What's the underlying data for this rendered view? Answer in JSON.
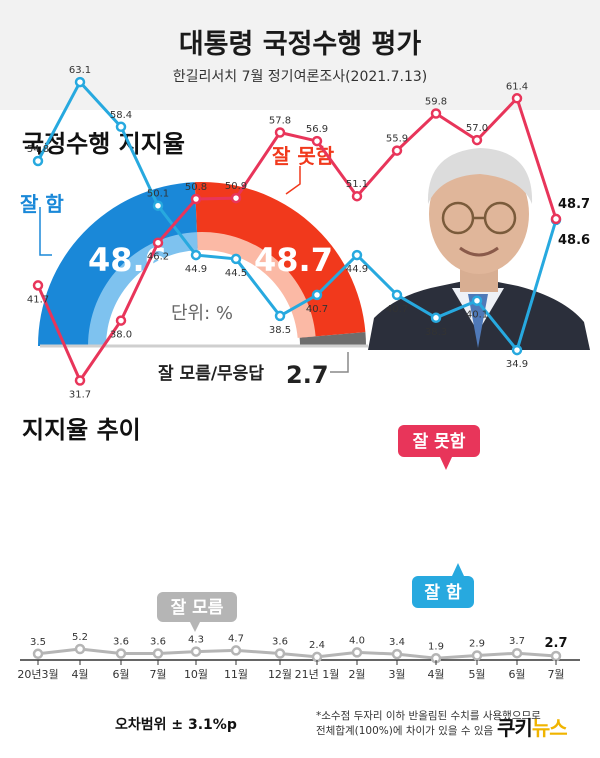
{
  "header": {
    "title": "대통령 국정수행 평가",
    "subtitle": "한길리서치 7월 정기여론조사(2021.7.13)"
  },
  "gauge": {
    "section_title": "국정수행 지지율",
    "good_label": "잘 함",
    "good_value": "48.6",
    "bad_label": "잘 못함",
    "bad_value": "48.7",
    "unit_label": "단위: %",
    "unknown_label": "잘 모름/무응답",
    "unknown_value": "2.7",
    "colors": {
      "good": "#1a88d8",
      "bad": "#f1391c",
      "unknown": "#6e6e6e"
    }
  },
  "trend": {
    "section_title": "지지율 추이"
  },
  "chart_data": [
    {
      "type": "pie",
      "title": "국정수행 지지율",
      "unit": "%",
      "categories": [
        "잘 함",
        "잘 못함",
        "잘 모름/무응답"
      ],
      "values": [
        48.6,
        48.7,
        2.7
      ]
    },
    {
      "type": "line",
      "title": "지지율 추이",
      "categories": [
        "20년3월",
        "4월",
        "6월",
        "7월",
        "10월",
        "11월",
        "12월",
        "21년 1월",
        "2월",
        "3월",
        "4월",
        "5월",
        "6월",
        "7월"
      ],
      "series": [
        {
          "name": "잘 함",
          "color": "#27a9df",
          "values": [
            54.8,
            63.1,
            58.4,
            50.1,
            44.9,
            44.5,
            38.5,
            40.7,
            44.9,
            40.7,
            38.3,
            40.1,
            34.9,
            48.6
          ]
        },
        {
          "name": "잘 못함",
          "color": "#e8355a",
          "values": [
            41.7,
            31.7,
            38.0,
            46.2,
            50.8,
            50.9,
            57.8,
            56.9,
            51.1,
            55.9,
            59.8,
            57.0,
            61.4,
            48.7
          ]
        },
        {
          "name": "잘 모름",
          "color": "#b5b5b5",
          "values": [
            3.5,
            5.2,
            3.6,
            3.6,
            4.3,
            4.7,
            3.6,
            2.4,
            4.0,
            3.4,
            1.9,
            2.9,
            3.7,
            2.7
          ]
        }
      ]
    }
  ],
  "footer": {
    "margin_of_error": "오차범위 ± 3.1%p",
    "note_line1": "*소수점 두자리 이하 반올림된 수치를 사용했으므로",
    "note_line2": "전체합계(100%)에 차이가 있을 수 있음",
    "logo_main": "쿠키",
    "logo_accent": "뉴스"
  }
}
